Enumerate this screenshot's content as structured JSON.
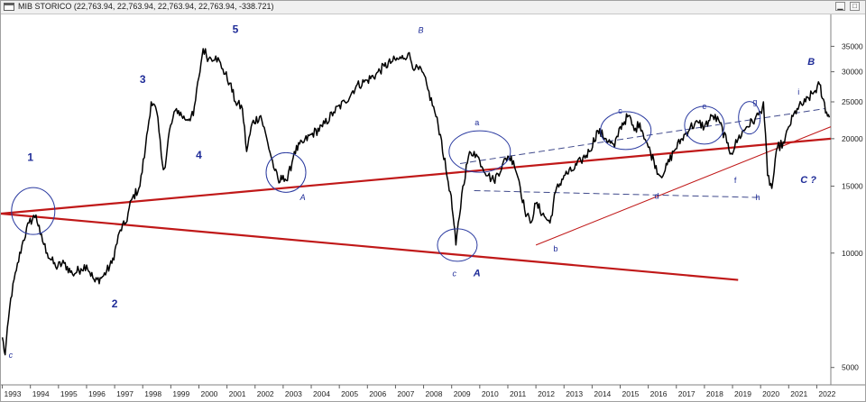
{
  "window": {
    "title": "MIB STORICO (22,763.94, 22,763.94, 22,763.94, 22,763.94, -338.721)",
    "minimize_icon": "minimize-icon",
    "maximize_icon": "maximize-icon"
  },
  "chart_data": {
    "type": "line",
    "title": "MIB STORICO",
    "ohlc": {
      "open": "22,763.94",
      "high": "22,763.94",
      "low": "22,763.94",
      "close": "22,763.94",
      "change": "-338.721"
    },
    "y_scale": "log",
    "ylim": [
      4500,
      42000
    ],
    "xlim": [
      1992.95,
      2022.5
    ],
    "x_ticks": [
      "1993",
      "1994",
      "1995",
      "1996",
      "1997",
      "1998",
      "1999",
      "2000",
      "2001",
      "2002",
      "2003",
      "2004",
      "2005",
      "2006",
      "2007",
      "2008",
      "2009",
      "2010",
      "2011",
      "2012",
      "2013",
      "2014",
      "2015",
      "2016",
      "2017",
      "2018",
      "2019",
      "2020",
      "2021",
      "2022"
    ],
    "y_ticks": [
      {
        "value": 35000,
        "label": "35000"
      },
      {
        "value": 30000,
        "label": "30000"
      },
      {
        "value": 25000,
        "label": "25000"
      },
      {
        "value": 20000,
        "label": "20000"
      },
      {
        "value": 15000,
        "label": "15000"
      },
      {
        "value": 10000,
        "label": "10000"
      },
      {
        "value": 5000,
        "label": "5000"
      }
    ],
    "series": [
      {
        "color": "#000000",
        "points": [
          [
            1993.0,
            6000
          ],
          [
            1993.1,
            5400
          ],
          [
            1993.3,
            7600
          ],
          [
            1993.5,
            9000
          ],
          [
            1993.7,
            10500
          ],
          [
            1993.95,
            12000
          ],
          [
            1994.2,
            12600
          ],
          [
            1994.35,
            11200
          ],
          [
            1994.6,
            10000
          ],
          [
            1994.9,
            9200
          ],
          [
            1995.2,
            9400
          ],
          [
            1995.5,
            8800
          ],
          [
            1995.8,
            9100
          ],
          [
            1996.0,
            9300
          ],
          [
            1996.3,
            8400
          ],
          [
            1996.6,
            8700
          ],
          [
            1996.9,
            9400
          ],
          [
            1997.2,
            11500
          ],
          [
            1997.4,
            12000
          ],
          [
            1997.6,
            13800
          ],
          [
            1997.9,
            15000
          ],
          [
            1998.1,
            19000
          ],
          [
            1998.3,
            25000
          ],
          [
            1998.5,
            23500
          ],
          [
            1998.7,
            17200
          ],
          [
            1998.8,
            16800
          ],
          [
            1998.95,
            21000
          ],
          [
            1999.2,
            24000
          ],
          [
            1999.5,
            22500
          ],
          [
            1999.8,
            23000
          ],
          [
            2000.0,
            29000
          ],
          [
            2000.15,
            34500
          ],
          [
            2000.35,
            32500
          ],
          [
            2000.6,
            33000
          ],
          [
            2000.85,
            30500
          ],
          [
            2001.1,
            28000
          ],
          [
            2001.3,
            25000
          ],
          [
            2001.55,
            24000
          ],
          [
            2001.7,
            18500
          ],
          [
            2001.9,
            22000
          ],
          [
            2002.2,
            23000
          ],
          [
            2002.45,
            19500
          ],
          [
            2002.7,
            16500
          ],
          [
            2002.85,
            15300
          ],
          [
            2003.0,
            16000
          ],
          [
            2003.15,
            15500
          ],
          [
            2003.4,
            18500
          ],
          [
            2003.7,
            19500
          ],
          [
            2004.0,
            20500
          ],
          [
            2004.4,
            21500
          ],
          [
            2004.8,
            23500
          ],
          [
            2005.2,
            25000
          ],
          [
            2005.6,
            27500
          ],
          [
            2006.0,
            28500
          ],
          [
            2006.3,
            29500
          ],
          [
            2006.6,
            31000
          ],
          [
            2006.9,
            32000
          ],
          [
            2007.2,
            32500
          ],
          [
            2007.45,
            33500
          ],
          [
            2007.7,
            30500
          ],
          [
            2007.95,
            30000
          ],
          [
            2008.15,
            27000
          ],
          [
            2008.4,
            23500
          ],
          [
            2008.6,
            20500
          ],
          [
            2008.8,
            16500
          ],
          [
            2008.95,
            14500
          ],
          [
            2009.05,
            12500
          ],
          [
            2009.15,
            10500
          ],
          [
            2009.4,
            15000
          ],
          [
            2009.6,
            18000
          ],
          [
            2009.8,
            18500
          ],
          [
            2010.0,
            17500
          ],
          [
            2010.3,
            16000
          ],
          [
            2010.5,
            15500
          ],
          [
            2010.8,
            17000
          ],
          [
            2011.0,
            18000
          ],
          [
            2011.2,
            17500
          ],
          [
            2011.4,
            15500
          ],
          [
            2011.6,
            13000
          ],
          [
            2011.8,
            12000
          ],
          [
            2012.0,
            13500
          ],
          [
            2012.3,
            12500
          ],
          [
            2012.5,
            12000
          ],
          [
            2012.7,
            14500
          ],
          [
            2013.0,
            16000
          ],
          [
            2013.3,
            16500
          ],
          [
            2013.6,
            17500
          ],
          [
            2013.9,
            18500
          ],
          [
            2014.2,
            21000
          ],
          [
            2014.5,
            20000
          ],
          [
            2014.8,
            19000
          ],
          [
            2015.0,
            21500
          ],
          [
            2015.3,
            23000
          ],
          [
            2015.5,
            21000
          ],
          [
            2015.7,
            22000
          ],
          [
            2016.0,
            19000
          ],
          [
            2016.2,
            17500
          ],
          [
            2016.4,
            16000
          ],
          [
            2016.6,
            16500
          ],
          [
            2016.9,
            18500
          ],
          [
            2017.2,
            20000
          ],
          [
            2017.5,
            21500
          ],
          [
            2017.8,
            22000
          ],
          [
            2018.0,
            21500
          ],
          [
            2018.3,
            23000
          ],
          [
            2018.55,
            22000
          ],
          [
            2018.8,
            19500
          ],
          [
            2018.95,
            18300
          ],
          [
            2019.2,
            20000
          ],
          [
            2019.5,
            21500
          ],
          [
            2019.8,
            22500
          ],
          [
            2020.0,
            23500
          ],
          [
            2020.1,
            25000
          ],
          [
            2020.25,
            16000
          ],
          [
            2020.4,
            14800
          ],
          [
            2020.6,
            19000
          ],
          [
            2020.85,
            19500
          ],
          [
            2021.0,
            21500
          ],
          [
            2021.3,
            24000
          ],
          [
            2021.6,
            25000
          ],
          [
            2021.9,
            26500
          ],
          [
            2022.1,
            27800
          ],
          [
            2022.2,
            25500
          ],
          [
            2022.35,
            23500
          ],
          [
            2022.45,
            22763.94
          ]
        ]
      }
    ],
    "trendlines": [
      {
        "name": "support",
        "color": "#c01818",
        "from": [
          1992.95,
          12700
        ],
        "to": [
          2022.5,
          20000
        ]
      },
      {
        "name": "lower-channel",
        "color": "#c01818",
        "from": [
          1992.95,
          12700
        ],
        "to": [
          2019.2,
          8500
        ]
      },
      {
        "name": "rising-support",
        "color": "#c01818",
        "from": [
          2012.0,
          10500
        ],
        "to": [
          2022.5,
          21500
        ]
      },
      {
        "name": "upper-dashed",
        "color": "#404a8c",
        "from": [
          2009.3,
          17200
        ],
        "to": [
          2022.3,
          24000
        ]
      },
      {
        "name": "lower-dashed",
        "color": "#404a8c",
        "from": [
          2009.8,
          14600
        ],
        "to": [
          2020.0,
          14000
        ]
      }
    ],
    "circles": [
      {
        "center": [
          1994.1,
          12900
        ],
        "label": ""
      },
      {
        "center": [
          2003.1,
          16300
        ],
        "label": ""
      },
      {
        "center": [
          2009.2,
          10500
        ],
        "label": ""
      },
      {
        "center": [
          2010.0,
          18500
        ],
        "label": ""
      },
      {
        "center": [
          2015.2,
          21000
        ],
        "label": ""
      },
      {
        "center": [
          2018.0,
          21700
        ],
        "label": ""
      },
      {
        "center": [
          2019.6,
          22700
        ],
        "label": ""
      }
    ],
    "wave_labels": [
      {
        "text": "1",
        "at": [
          1994.0,
          17500
        ],
        "bold": true,
        "italic": false
      },
      {
        "text": "2",
        "at": [
          1997.0,
          7200
        ],
        "bold": true,
        "italic": false
      },
      {
        "text": "3",
        "at": [
          1998.0,
          28000
        ],
        "bold": true,
        "italic": false
      },
      {
        "text": "4",
        "at": [
          2000.0,
          17700
        ],
        "bold": true,
        "italic": false
      },
      {
        "text": "5",
        "at": [
          2001.3,
          38000
        ],
        "bold": true,
        "italic": false
      },
      {
        "text": "c",
        "at": [
          1993.3,
          5300
        ],
        "bold": false,
        "italic": true
      },
      {
        "text": "A",
        "at": [
          2003.7,
          13800
        ],
        "bold": false,
        "italic": true
      },
      {
        "text": "B",
        "at": [
          2007.9,
          38000
        ],
        "bold": false,
        "italic": true
      },
      {
        "text": "c",
        "at": [
          2009.1,
          8700
        ],
        "bold": false,
        "italic": true
      },
      {
        "text": "A",
        "at": [
          2009.9,
          8700
        ],
        "bold": true,
        "italic": true
      },
      {
        "text": "a",
        "at": [
          2009.9,
          21700
        ],
        "bold": false,
        "italic": false
      },
      {
        "text": "b",
        "at": [
          2012.7,
          10100
        ],
        "bold": false,
        "italic": false
      },
      {
        "text": "c",
        "at": [
          2015.0,
          23300
        ],
        "bold": false,
        "italic": false
      },
      {
        "text": "d",
        "at": [
          2016.3,
          13900
        ],
        "bold": false,
        "italic": false
      },
      {
        "text": "e",
        "at": [
          2018.0,
          23900
        ],
        "bold": false,
        "italic": false
      },
      {
        "text": "f",
        "at": [
          2019.1,
          15300
        ],
        "bold": false,
        "italic": false
      },
      {
        "text": "g",
        "at": [
          2019.8,
          24600
        ],
        "bold": false,
        "italic": false
      },
      {
        "text": "h",
        "at": [
          2019.9,
          13800
        ],
        "bold": false,
        "italic": false
      },
      {
        "text": "i",
        "at": [
          2021.35,
          26100
        ],
        "bold": false,
        "italic": false
      },
      {
        "text": "B",
        "at": [
          2021.8,
          31300
        ],
        "bold": true,
        "italic": true
      },
      {
        "text": "C ?",
        "at": [
          2021.7,
          15300
        ],
        "bold": true,
        "italic": true
      }
    ]
  }
}
